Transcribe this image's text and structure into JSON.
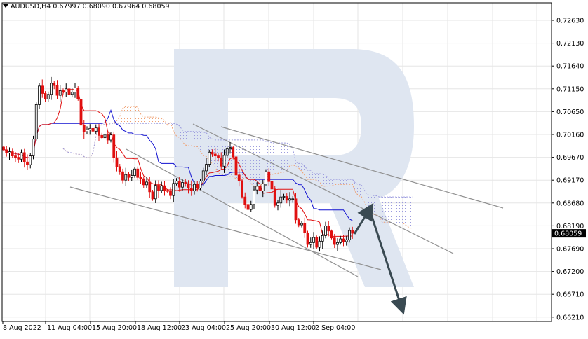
{
  "header": {
    "symbol": "AUDUSD,H4",
    "open": "0.67997",
    "high": "0.68090",
    "low": "0.67964",
    "close": "0.68059"
  },
  "colors": {
    "bull": "#000000",
    "bear": "#e01010",
    "tenkan": "#e01010",
    "kijun": "#1010d0",
    "cloud_orange": "#f0a070",
    "cloud_blue": "#9b9bde",
    "channel": "#909090",
    "forecast_arrow": "#3a4a52",
    "grid": "#e6e6e6",
    "watermark": "#dfe6f1",
    "price_box_bg": "#000000",
    "price_box_text": "#ffffff"
  },
  "chart_data": {
    "type": "candlestick",
    "symbol": "AUDUSD",
    "timeframe": "H4",
    "ylim": [
      0.6621,
      0.7293
    ],
    "y_ticks": [
      "0.72630",
      "0.72130",
      "0.71640",
      "0.71150",
      "0.70650",
      "0.70160",
      "0.69670",
      "0.69170",
      "0.68680",
      "0.68190",
      "0.67690",
      "0.67200",
      "0.66710",
      "0.66210"
    ],
    "x_labels": [
      "8 Aug 2022",
      "11 Aug 04:00",
      "15 Aug 20:00",
      "18 Aug 12:00",
      "23 Aug 04:00",
      "25 Aug 20:00",
      "30 Aug 12:00",
      "2 Sep 04:00"
    ],
    "last_price": "0.68059",
    "indicator": "Ichimoku Kinko Hyo",
    "forecast": "rise to about 0.6860, then decline toward 0.6650",
    "closes": [
      0.6985,
      0.6978,
      0.6981,
      0.6972,
      0.6969,
      0.6965,
      0.6979,
      0.6959,
      0.6953,
      0.6972,
      0.7008,
      0.7082,
      0.7122,
      0.7106,
      0.7094,
      0.7104,
      0.7128,
      0.7123,
      0.7102,
      0.7112,
      0.7109,
      0.7116,
      0.7104,
      0.7109,
      0.7118,
      0.7094,
      0.7038,
      0.7024,
      0.7028,
      0.7031,
      0.7025,
      0.7032,
      0.7016,
      0.7011,
      0.7018,
      0.7006,
      0.7017,
      0.6968,
      0.6949,
      0.6938,
      0.692,
      0.6932,
      0.6926,
      0.693,
      0.6944,
      0.6926,
      0.6923,
      0.691,
      0.6916,
      0.6895,
      0.688,
      0.6909,
      0.6898,
      0.6908,
      0.6898,
      0.6896,
      0.6887,
      0.6913,
      0.6918,
      0.6905,
      0.6915,
      0.6912,
      0.6903,
      0.6897,
      0.6911,
      0.6903,
      0.6918,
      0.694,
      0.6954,
      0.698,
      0.6976,
      0.6972,
      0.6968,
      0.695,
      0.6973,
      0.6987,
      0.699,
      0.697,
      0.6931,
      0.6919,
      0.6884,
      0.6868,
      0.6857,
      0.6868,
      0.6899,
      0.6907,
      0.6897,
      0.6912,
      0.6938,
      0.6917,
      0.6901,
      0.6866,
      0.6871,
      0.6884,
      0.6885,
      0.6877,
      0.688,
      0.688,
      0.6835,
      0.6824,
      0.6827,
      0.6807,
      0.6782,
      0.6786,
      0.6797,
      0.6776,
      0.6789,
      0.6801,
      0.6822,
      0.6811,
      0.6796,
      0.6782,
      0.6786,
      0.6794,
      0.6788,
      0.6792,
      0.6812,
      0.6806
    ]
  }
}
